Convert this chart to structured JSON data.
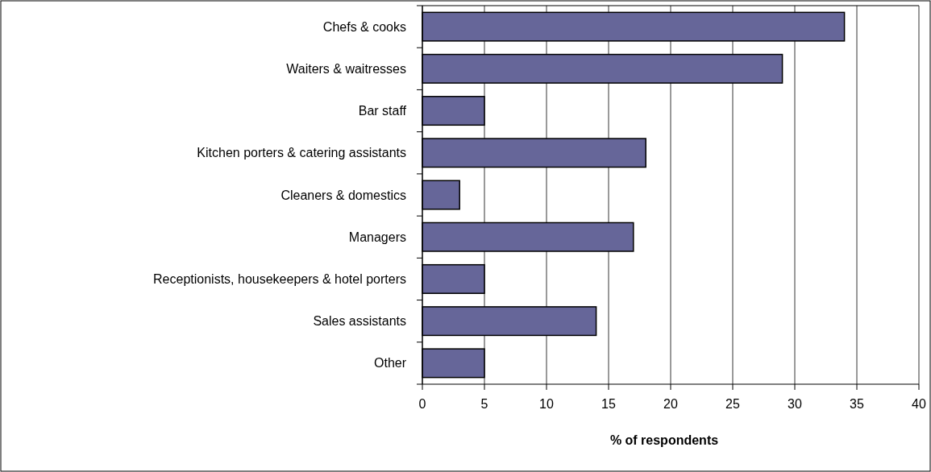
{
  "chart_data": {
    "type": "bar",
    "orientation": "horizontal",
    "xlabel": "% of respondents",
    "categories": [
      "Chefs & cooks",
      "Waiters & waitresses",
      "Bar staff",
      "Kitchen porters & catering assistants",
      "Cleaners & domestics",
      "Managers",
      "Receptionists, housekeepers & hotel porters",
      "Sales assistants",
      "Other"
    ],
    "values": [
      34,
      29,
      5,
      18,
      3,
      17,
      5,
      14,
      5
    ],
    "color": "#666699",
    "xlim": [
      0,
      40
    ],
    "xticks": [
      0,
      5,
      10,
      15,
      20,
      25,
      30,
      35,
      40
    ],
    "grid": "x"
  }
}
